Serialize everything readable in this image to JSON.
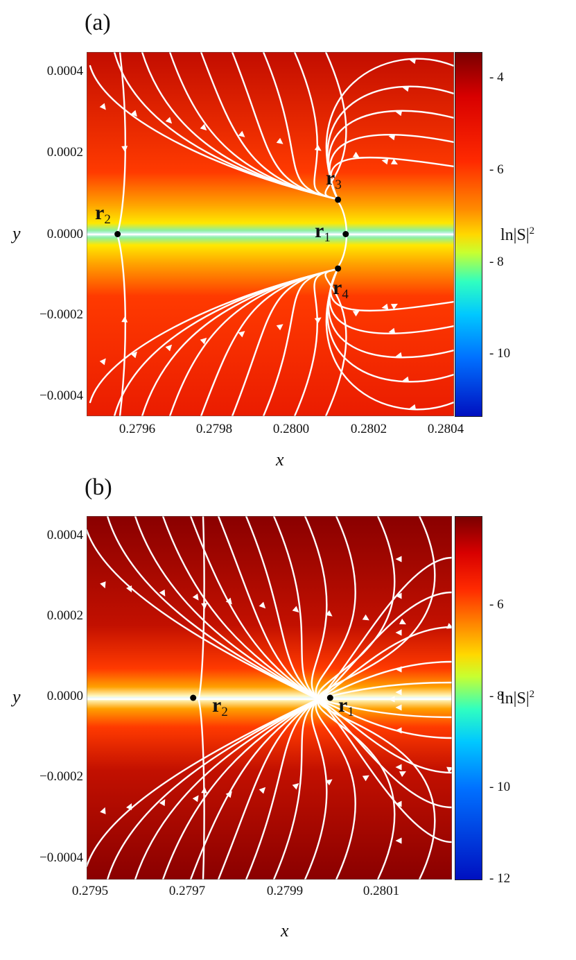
{
  "chart_data": [
    {
      "panel": "(a)",
      "type": "heatmap",
      "xlabel": "x",
      "ylabel": "y",
      "x_ticks": [
        "0.2796",
        "0.2798",
        "0.2800",
        "0.2802",
        "0.2804"
      ],
      "y_ticks": [
        "0.0004",
        "0.0002",
        "0.0000",
        "−0.0002",
        "−0.0004"
      ],
      "xlim": [
        0.27948,
        0.28043
      ],
      "ylim": [
        -0.00045,
        0.00045
      ],
      "colorbar": {
        "label": "ln|S|",
        "label_super": "2",
        "ticks": [
          "- 4",
          "- 6",
          "- 8",
          "- 10"
        ],
        "range": [
          -11.5,
          -3.6
        ]
      },
      "points": [
        {
          "name": "r",
          "sub": "1",
          "x": 0.28015,
          "y": 0.0
        },
        {
          "name": "r",
          "sub": "2",
          "x": 0.27956,
          "y": 0.0
        },
        {
          "name": "r",
          "sub": "3",
          "x": 0.28013,
          "y": 8.5e-05
        },
        {
          "name": "r",
          "sub": "4",
          "x": 0.28013,
          "y": -8.5e-05
        }
      ]
    },
    {
      "panel": "(b)",
      "type": "heatmap",
      "xlabel": "x",
      "ylabel": "y",
      "x_ticks": [
        "0.2795",
        "0.2797",
        "0.2799",
        "0.2801"
      ],
      "y_ticks": [
        "0.0004",
        "0.0002",
        "0.0000",
        "−0.0002",
        "−0.0004"
      ],
      "xlim": [
        0.2795,
        0.28022
      ],
      "ylim": [
        -0.00045,
        0.00045
      ],
      "colorbar": {
        "label": "ln|S|",
        "label_super": "2",
        "ticks": [
          "- 6",
          "- 8",
          "- 10",
          "- 12"
        ],
        "range": [
          -12,
          -4.5
        ]
      },
      "points": [
        {
          "name": "r",
          "sub": "1",
          "x": 0.27998,
          "y": 0.0
        },
        {
          "name": "r",
          "sub": "2",
          "x": 0.27971,
          "y": 0.0
        }
      ]
    }
  ]
}
